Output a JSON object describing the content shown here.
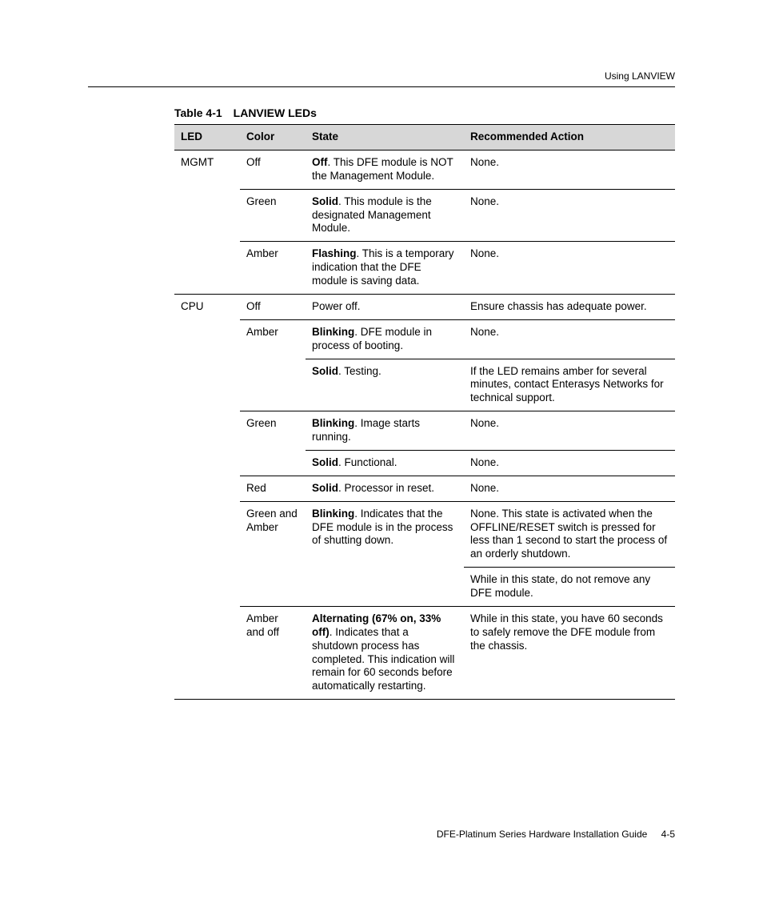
{
  "running_head": "Using LANVIEW",
  "caption_num": "Table 4-1",
  "caption_title": "LANVIEW LEDs",
  "headers": {
    "led": "LED",
    "color": "Color",
    "state": "State",
    "action": "Recommended Action"
  },
  "footer_title": "DFE-Platinum Series Hardware Installation Guide",
  "footer_page": "4-5",
  "r0": {
    "led": "MGMT",
    "color": "Off",
    "state_b": "Off",
    "state_r": ". This DFE module is NOT the Management Module.",
    "action": "None."
  },
  "r1": {
    "color": "Green",
    "state_b": "Solid",
    "state_r": ". This module is the designated Management Module.",
    "action": "None."
  },
  "r2": {
    "color": "Amber",
    "state_b": "Flashing",
    "state_r": ". This is a temporary indication that the DFE module is saving data.",
    "action": "None."
  },
  "r3": {
    "led": "CPU",
    "color": "Off",
    "state": "Power off.",
    "action": "Ensure chassis has adequate power."
  },
  "r4": {
    "color": "Amber",
    "state_b": "Blinking",
    "state_r": ". DFE module in process of booting.",
    "action": "None."
  },
  "r5": {
    "state_b": "Solid",
    "state_r": ". Testing.",
    "action": "If the LED remains amber for several minutes, contact Enterasys Networks for technical support."
  },
  "r6": {
    "color": "Green",
    "state_b": "Blinking",
    "state_r": ". Image starts running.",
    "action": "None."
  },
  "r7": {
    "state_b": "Solid",
    "state_r": ". Functional.",
    "action": "None."
  },
  "r8": {
    "color": "Red",
    "state_b": "Solid",
    "state_r": ". Processor in reset.",
    "action": "None."
  },
  "r9": {
    "color": "Green and Amber",
    "state_b": "Blinking",
    "state_r": ". Indicates that the DFE module is in the process of shutting down.",
    "action": "None. This state is activated when the OFFLINE/RESET switch is pressed for less than 1 second to start the process of an orderly shutdown."
  },
  "r10": {
    "action": "While in this state, do not remove any DFE module."
  },
  "r11": {
    "color": "Amber and off",
    "state_b": "Alternating (67% on, 33% off)",
    "state_r": ". Indicates that a shutdown process has completed. This indication will remain for 60 seconds before automatically restarting.",
    "action": "While in this state, you have 60 seconds to safely remove the DFE module from the chassis."
  }
}
